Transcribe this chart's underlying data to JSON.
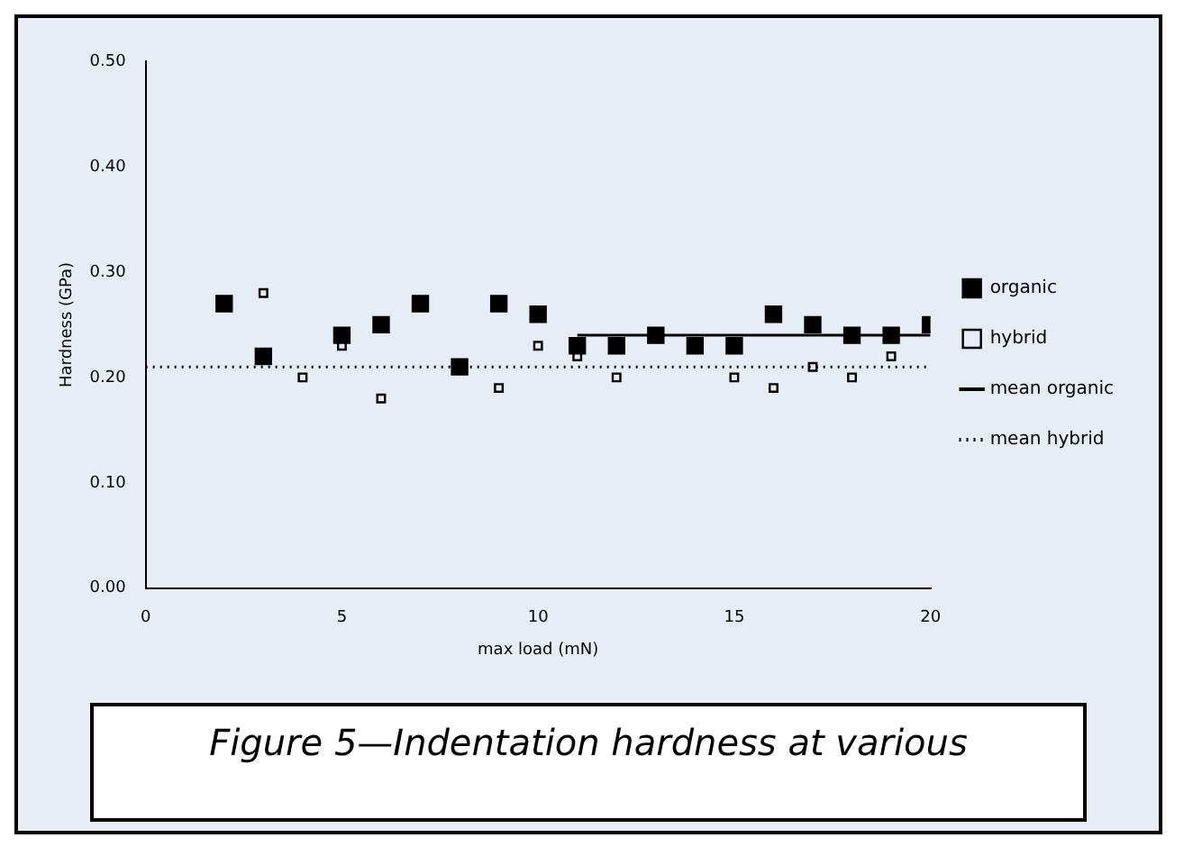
{
  "chart_data": {
    "type": "scatter",
    "xlabel": "max load (mN)",
    "ylabel": "Hardness (GPa)",
    "xlim": [
      0,
      20
    ],
    "xticks": [
      0,
      5,
      10,
      15,
      20
    ],
    "ylim": [
      0,
      0.5
    ],
    "yticks": [
      {
        "value": 0,
        "label": "0.00"
      },
      {
        "value": 0.1,
        "label": "0.10"
      },
      {
        "value": 0.2,
        "label": "0.20"
      },
      {
        "value": 0.3,
        "label": "0.30"
      },
      {
        "value": 0.4,
        "label": "0.40"
      },
      {
        "value": 0.5,
        "label": "0.50"
      }
    ],
    "grid": false,
    "legend": "right",
    "series": [
      {
        "name": "organic",
        "marker": "square",
        "color": "#000000",
        "x": [
          2,
          3,
          5,
          6,
          7,
          8,
          9,
          10,
          11,
          12,
          13,
          14,
          15,
          16,
          17,
          18,
          19,
          20
        ],
        "values": [
          0.27,
          0.22,
          0.24,
          0.25,
          0.27,
          0.21,
          0.27,
          0.26,
          0.23,
          0.23,
          0.24,
          0.23,
          0.23,
          0.26,
          0.25,
          0.24,
          0.24,
          0.25
        ]
      },
      {
        "name": "hybrid",
        "marker": "square",
        "color": "#000000",
        "x": [
          3,
          4,
          5,
          6,
          9,
          10,
          11,
          12,
          15,
          16,
          17,
          18,
          19
        ],
        "values": [
          0.28,
          0.2,
          0.23,
          0.18,
          0.19,
          0.23,
          0.22,
          0.2,
          0.2,
          0.19,
          0.21,
          0.2,
          0.22
        ]
      },
      {
        "name": "mean organic",
        "type": "line",
        "marker": "none",
        "line_style": "solid",
        "color": "#000000",
        "x": [
          11,
          20
        ],
        "values": [
          0.24,
          0.24
        ]
      },
      {
        "name": "mean hybrid",
        "type": "line",
        "marker": "none",
        "line_style": "dotted",
        "color": "#000000",
        "x": [
          0,
          20
        ],
        "values": [
          0.21,
          0.21
        ]
      }
    ],
    "annotations": [
      "Figure 5—Indentation hardness at various"
    ]
  }
}
